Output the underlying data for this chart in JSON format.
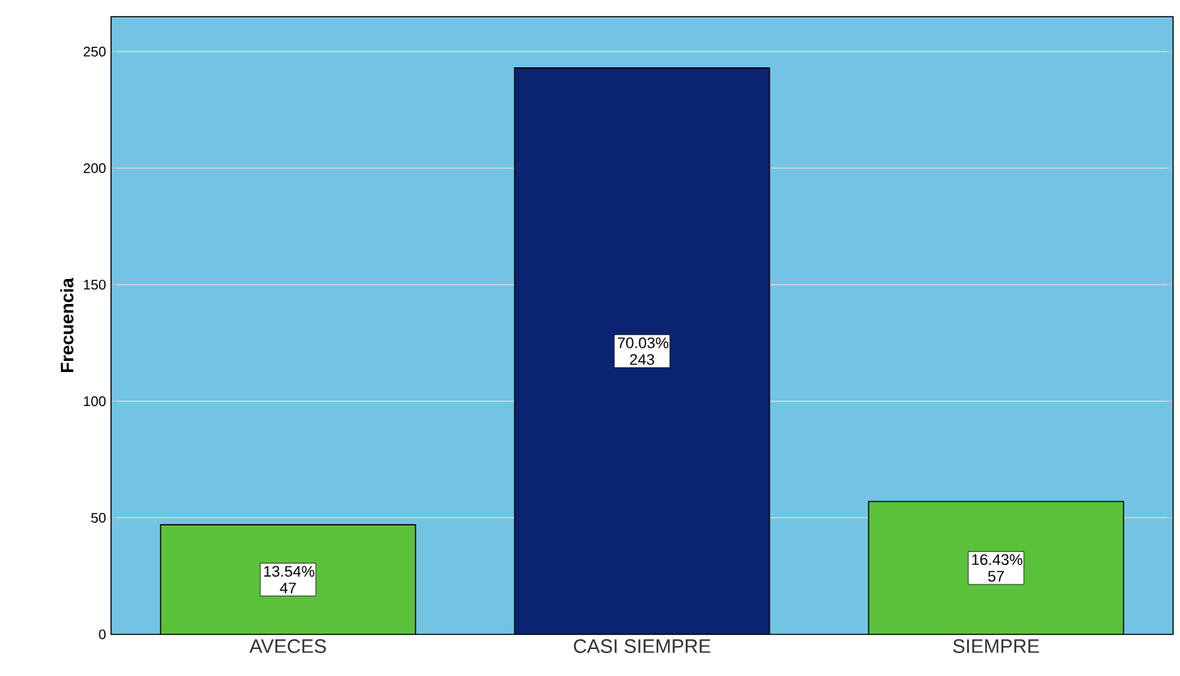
{
  "chart_data": {
    "type": "bar",
    "ylabel": "Frecuencia",
    "categories": [
      "AVECES",
      "CASI SIEMPRE",
      "SIEMPRE"
    ],
    "values": [
      47,
      243,
      57
    ],
    "colors": [
      "#5cc13a",
      "#0a2472",
      "#5cc13a"
    ],
    "value_labels": [
      "13.54% 47",
      "70.03% 243",
      "16.43% 57"
    ],
    "ylim": [
      0,
      265
    ],
    "yticks": [
      0,
      50,
      100,
      150,
      200,
      250
    ],
    "grid": "y"
  }
}
